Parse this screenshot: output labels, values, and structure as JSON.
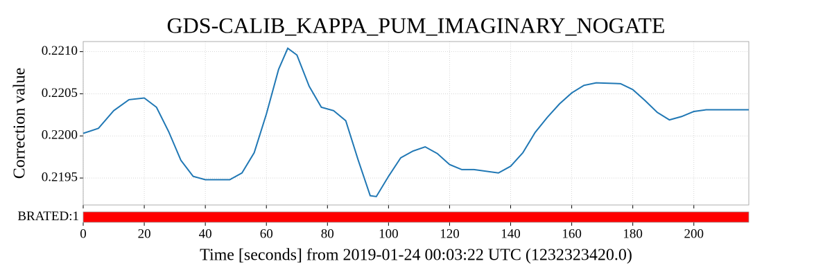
{
  "chart_data": {
    "type": "line",
    "title": "GDS-CALIB_KAPPA_PUM_IMAGINARY_NOGATE",
    "y_label": "Correction value",
    "x_label": "Time [seconds] from 2019-01-24 00:03:22 UTC (1232323420.0)",
    "x": [
      0,
      5,
      10,
      15,
      20,
      24,
      28,
      32,
      36,
      40,
      48,
      52,
      56,
      60,
      64,
      67,
      70,
      74,
      78,
      82,
      86,
      90,
      94,
      96,
      100,
      104,
      108,
      112,
      116,
      120,
      124,
      128,
      136,
      140,
      144,
      148,
      152,
      156,
      160,
      164,
      168,
      176,
      180,
      184,
      188,
      192,
      196,
      200,
      204,
      208,
      218
    ],
    "series": [
      {
        "color": "#1f77b4",
        "values": [
          0.22003,
          0.22009,
          0.2203,
          0.22043,
          0.22045,
          0.22034,
          0.22005,
          0.21971,
          0.21952,
          0.21948,
          0.21948,
          0.21956,
          0.2198,
          0.22026,
          0.22079,
          0.22104,
          0.22096,
          0.22059,
          0.22034,
          0.2203,
          0.22018,
          0.21972,
          0.21929,
          0.21928,
          0.21952,
          0.21974,
          0.21982,
          0.21987,
          0.21979,
          0.21966,
          0.2196,
          0.2196,
          0.21956,
          0.21964,
          0.2198,
          0.22004,
          0.22022,
          0.22038,
          0.22051,
          0.2206,
          0.22063,
          0.22062,
          0.22055,
          0.22042,
          0.22028,
          0.22019,
          0.22023,
          0.22029,
          0.22031,
          0.22031,
          0.22031
        ]
      }
    ],
    "xlim": [
      0,
      218
    ],
    "xticks": [
      0,
      20,
      40,
      60,
      80,
      100,
      120,
      140,
      160,
      180,
      200
    ],
    "ylim": [
      0.21918,
      0.22112
    ],
    "yticks": [
      {
        "value": 0.2195,
        "label": "0.2195"
      },
      {
        "value": 0.22,
        "label": "0.2200"
      },
      {
        "value": 0.2205,
        "label": "0.2205"
      },
      {
        "value": 0.221,
        "label": "0.2210"
      }
    ],
    "grid": true,
    "state": {
      "label": "BRATED:1",
      "segment": [
        0,
        218
      ],
      "color": "#ff0000"
    }
  }
}
